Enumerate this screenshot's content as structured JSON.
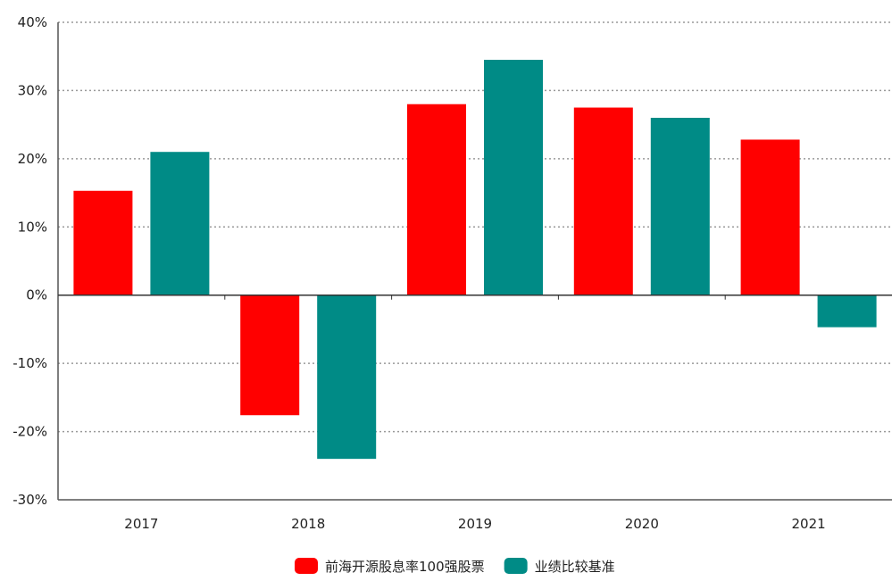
{
  "chart_data": {
    "type": "bar",
    "categories": [
      "2017",
      "2018",
      "2019",
      "2020",
      "2021"
    ],
    "series": [
      {
        "name": "前海开源股息率100强股票",
        "color": "#FF0000",
        "values": [
          15.3,
          -17.6,
          28.0,
          27.5,
          22.8
        ]
      },
      {
        "name": "业绩比较基准",
        "color": "#008B86",
        "values": [
          21.0,
          -24.0,
          34.5,
          26.0,
          -4.7
        ]
      }
    ],
    "ylim": [
      -30,
      40
    ],
    "yticks": [
      -30,
      -20,
      -10,
      0,
      10,
      20,
      30,
      40
    ],
    "ytick_labels": [
      "-30%",
      "-20%",
      "-10%",
      "0%",
      "10%",
      "20%",
      "30%",
      "40%"
    ],
    "grid": true,
    "legend": "bottom-center",
    "title": "",
    "xlabel": "",
    "ylabel": ""
  }
}
